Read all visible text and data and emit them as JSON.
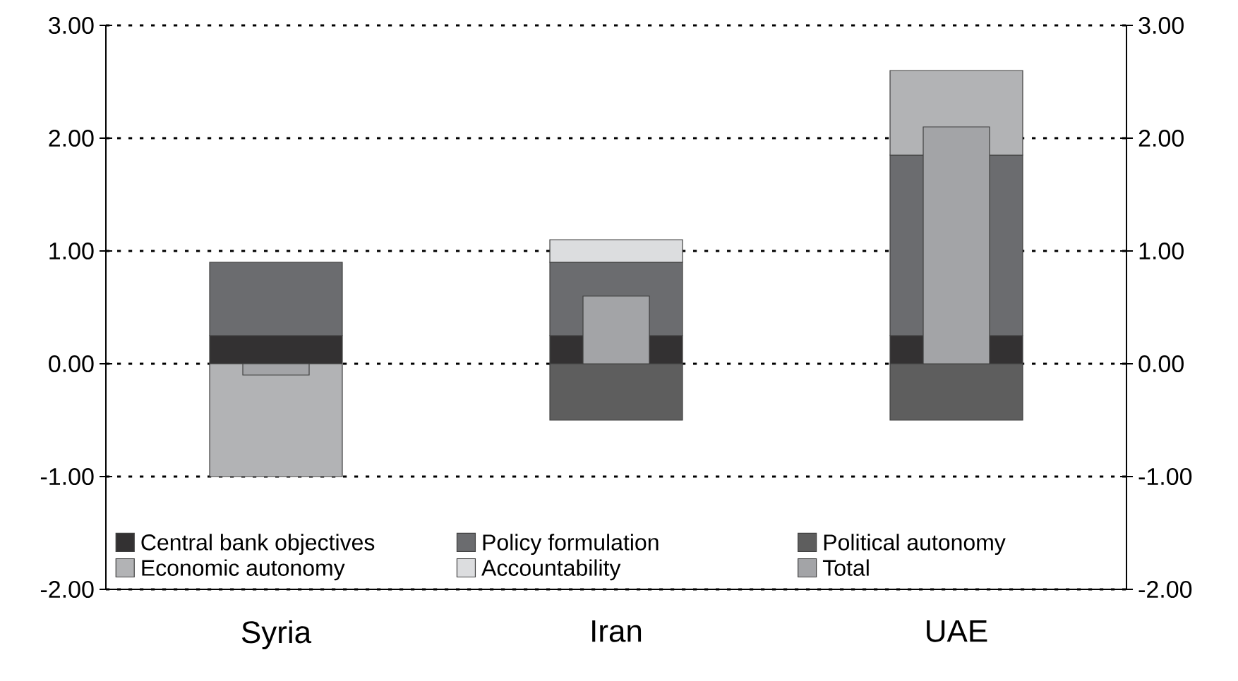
{
  "chart_data": {
    "type": "bar",
    "categories": [
      "Syria",
      "Iran",
      "UAE"
    ],
    "series": [
      {
        "name": "Central bank objectives",
        "color": "#333132",
        "values": [
          0.25,
          0.25,
          0.25
        ],
        "base": [
          0,
          0,
          0
        ]
      },
      {
        "name": "Policy formulation",
        "color": "#6b6c6f",
        "values": [
          0.65,
          0.65,
          1.6
        ],
        "base": [
          0.25,
          0.25,
          0.25
        ]
      },
      {
        "name": "Political autonomy",
        "color": "#5e5e5e",
        "values": [
          null,
          -0.5,
          -0.5
        ],
        "base": [
          null,
          0,
          0
        ]
      },
      {
        "name": "Economic autonomy",
        "color": "#b2b3b5",
        "values": [
          -1.0,
          null,
          0.75
        ],
        "base": [
          0,
          null,
          1.85
        ]
      },
      {
        "name": "Accountability",
        "color": "#dcdddf",
        "values": [
          null,
          0.2,
          null
        ],
        "base": [
          null,
          0.9,
          null
        ]
      },
      {
        "name": "Total",
        "color": "#a3a4a7",
        "values": [
          -0.1,
          0.6,
          2.1
        ]
      }
    ],
    "ylim": [
      -2,
      3
    ],
    "yticks": [
      {
        "value": -2,
        "label": "-2.00"
      },
      {
        "value": -1,
        "label": "-1.00"
      },
      {
        "value": 0,
        "label": "0.00"
      },
      {
        "value": 1,
        "label": "1.00"
      },
      {
        "value": 2,
        "label": "2.00"
      },
      {
        "value": 3,
        "label": "3.00"
      }
    ],
    "y2lim": [
      -2,
      3
    ],
    "y2ticks": [
      {
        "value": -2,
        "label": "-2.00"
      },
      {
        "value": -1,
        "label": "-1.00"
      },
      {
        "value": 0,
        "label": "0.00"
      },
      {
        "value": 1,
        "label": "1.00"
      },
      {
        "value": 2,
        "label": "2.00"
      },
      {
        "value": 3,
        "label": "3.00"
      }
    ],
    "grid": "y",
    "legend": "bottom"
  }
}
